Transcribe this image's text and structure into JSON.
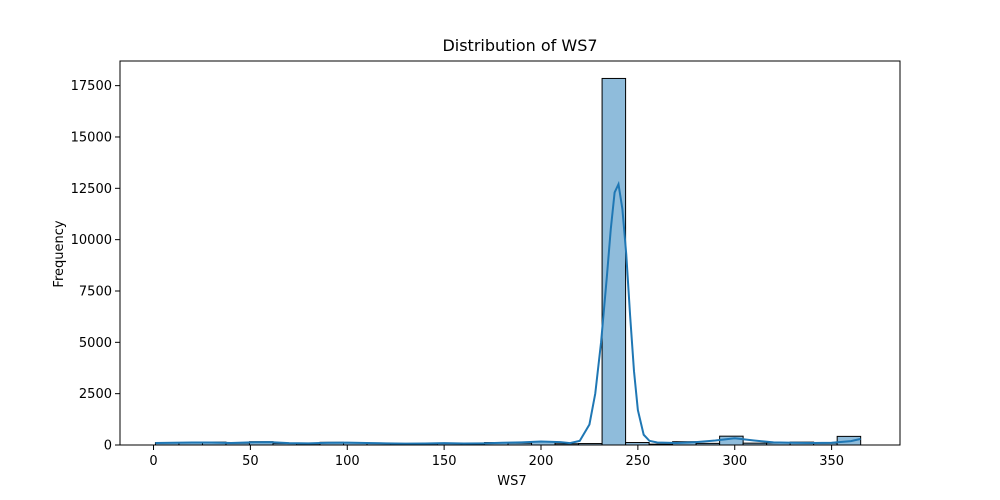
{
  "chart_data": {
    "type": "bar",
    "title": "Distribution of WS7",
    "xlabel": "WS7",
    "ylabel": "Frequency",
    "xlim": [
      -17.3,
      385.3
    ],
    "ylim": [
      0,
      18700
    ],
    "xticks": [
      0,
      50,
      100,
      150,
      200,
      250,
      300,
      350
    ],
    "yticks": [
      0,
      2500,
      5000,
      7500,
      10000,
      12500,
      15000,
      17500
    ],
    "grid": false,
    "legend": "none",
    "bin_edges": [
      1,
      13.13,
      25.27,
      37.4,
      49.53,
      61.67,
      73.8,
      85.93,
      98.07,
      110.2,
      122.33,
      134.47,
      146.6,
      158.73,
      170.87,
      183,
      195.13,
      207.27,
      219.4,
      231.53,
      243.67,
      255.8,
      267.93,
      280.07,
      292.2,
      304.33,
      316.47,
      328.6,
      340.73,
      352.87,
      365
    ],
    "counts": [
      110,
      120,
      140,
      90,
      160,
      80,
      60,
      130,
      120,
      90,
      60,
      60,
      90,
      50,
      120,
      90,
      150,
      60,
      70,
      17850,
      120,
      40,
      160,
      80,
      430,
      90,
      100,
      140,
      90,
      420
    ],
    "kde": {
      "x": [
        1,
        10,
        20,
        30,
        40,
        50,
        60,
        70,
        80,
        90,
        100,
        110,
        120,
        130,
        140,
        150,
        160,
        170,
        180,
        190,
        200,
        210,
        215,
        220,
        225,
        228,
        231,
        234,
        236,
        238,
        240,
        242,
        244,
        246,
        248,
        250,
        253,
        256,
        260,
        270,
        280,
        290,
        300,
        310,
        320,
        330,
        340,
        350,
        360,
        365
      ],
      "y": [
        100,
        110,
        120,
        120,
        95,
        130,
        140,
        90,
        80,
        110,
        115,
        100,
        80,
        65,
        70,
        90,
        70,
        80,
        110,
        130,
        170,
        140,
        90,
        200,
        1000,
        2500,
        5000,
        8200,
        10500,
        12300,
        12700,
        11500,
        9300,
        6300,
        3600,
        1700,
        500,
        200,
        120,
        100,
        140,
        220,
        330,
        220,
        130,
        110,
        100,
        110,
        190,
        300
      ]
    },
    "colors": {
      "bar_fill": "#8fbcdb",
      "bar_edge": "#000000",
      "kde_line": "#1f77b4"
    }
  }
}
